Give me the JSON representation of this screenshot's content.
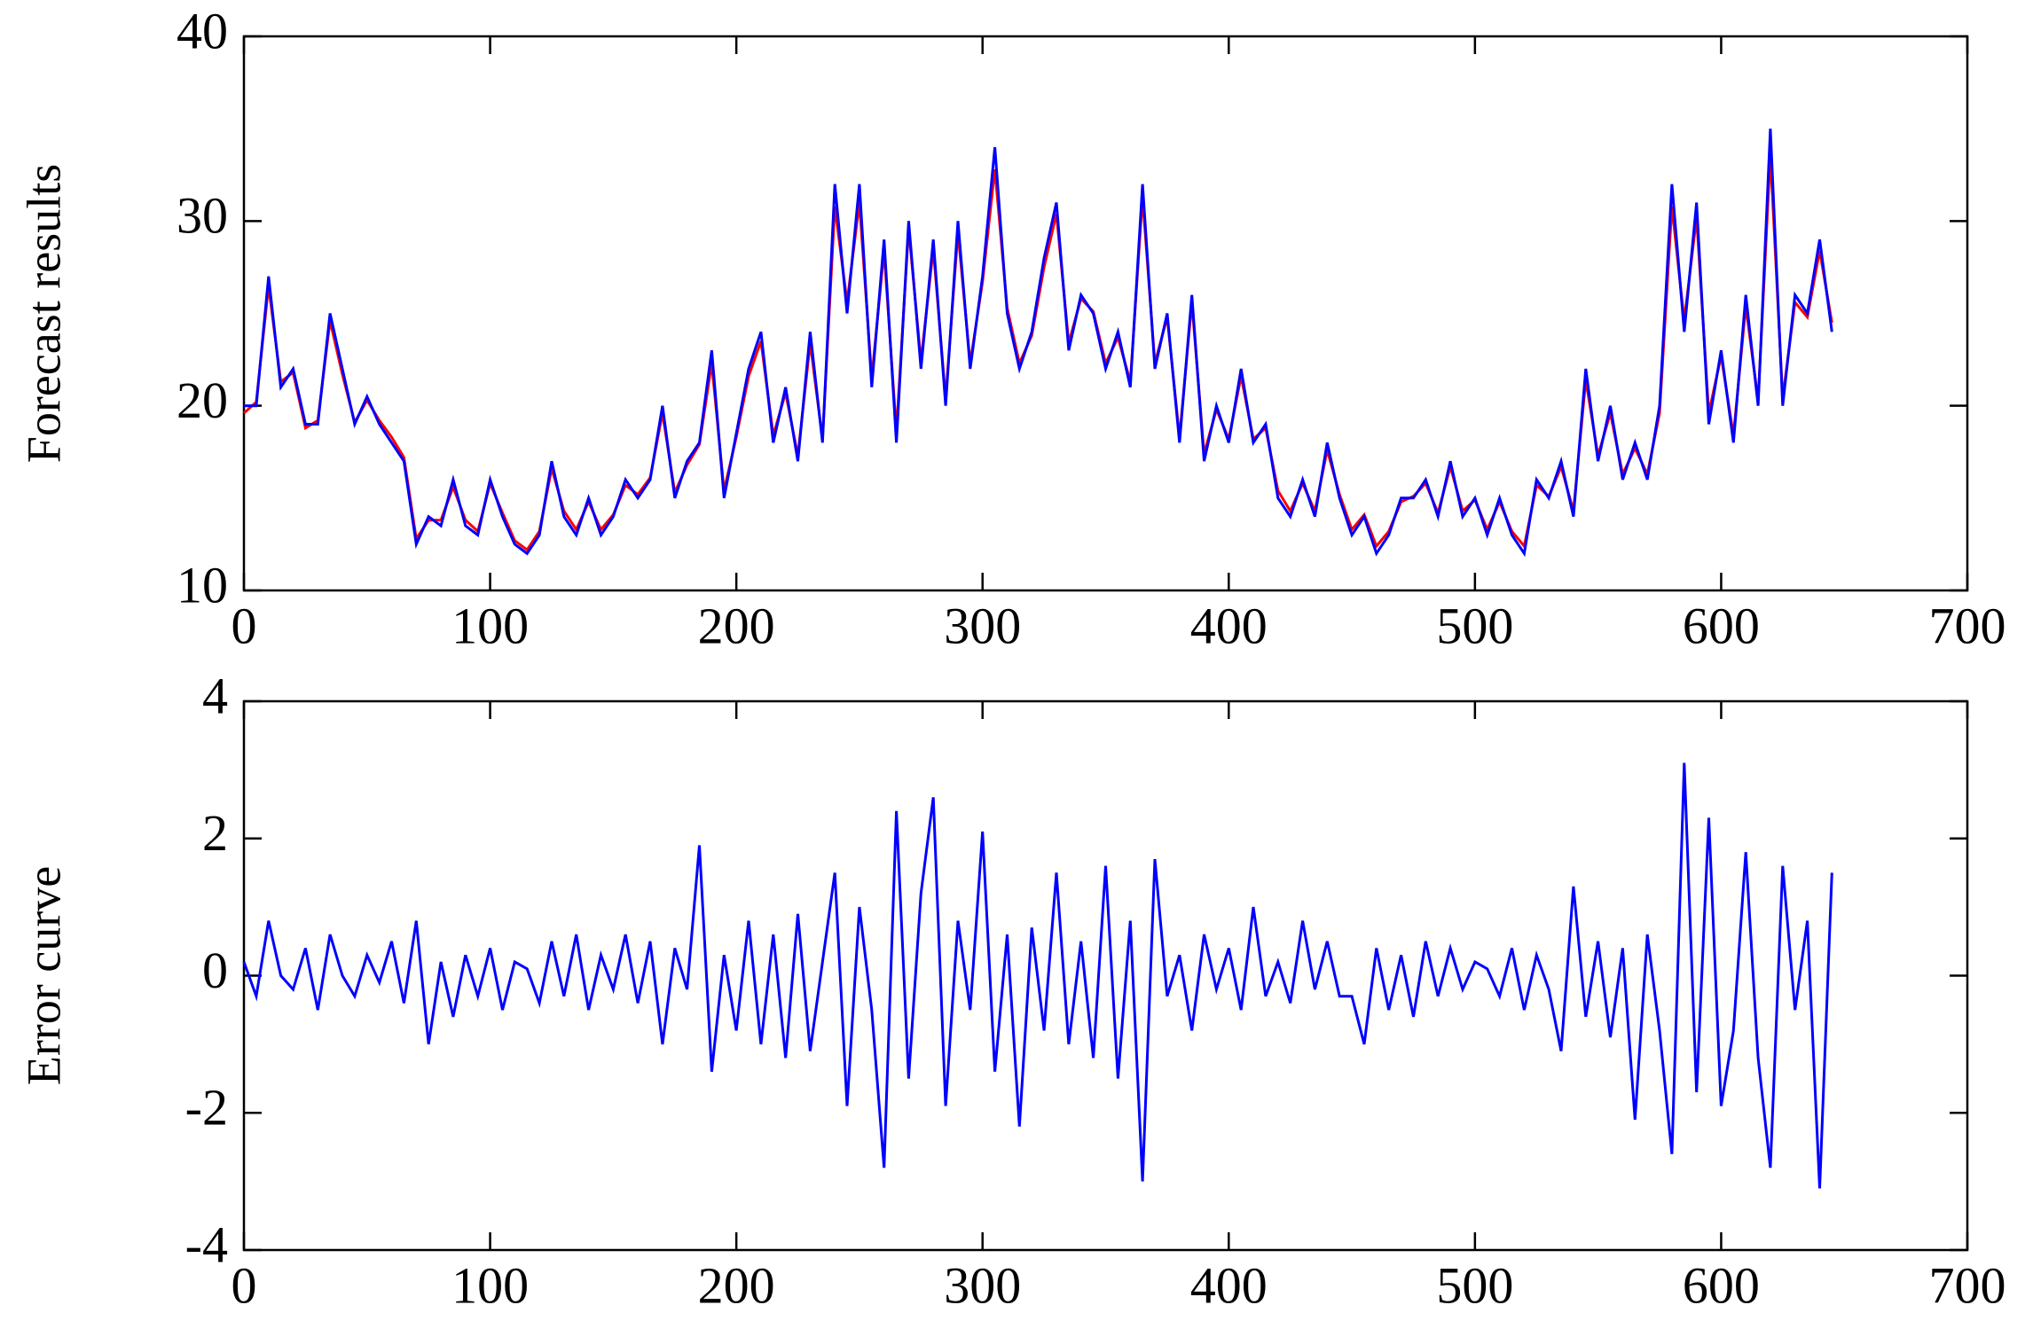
{
  "chart_data": [
    {
      "type": "line",
      "ylabel": "Forecast results",
      "x": [
        0,
        5,
        10,
        15,
        20,
        25,
        30,
        35,
        40,
        45,
        50,
        55,
        60,
        65,
        70,
        75,
        80,
        85,
        90,
        95,
        100,
        105,
        110,
        115,
        120,
        125,
        130,
        135,
        140,
        145,
        150,
        155,
        160,
        165,
        170,
        175,
        180,
        185,
        190,
        195,
        200,
        205,
        210,
        215,
        220,
        225,
        230,
        235,
        240,
        245,
        250,
        255,
        260,
        265,
        270,
        275,
        280,
        285,
        290,
        295,
        300,
        305,
        310,
        315,
        320,
        325,
        330,
        335,
        340,
        345,
        350,
        355,
        360,
        365,
        370,
        375,
        380,
        385,
        390,
        395,
        400,
        405,
        410,
        415,
        420,
        425,
        430,
        435,
        440,
        445,
        450,
        455,
        460,
        465,
        470,
        475,
        480,
        485,
        490,
        495,
        500,
        505,
        510,
        515,
        520,
        525,
        530,
        535,
        540,
        545,
        550,
        555,
        560,
        565,
        570,
        575,
        580,
        585,
        590,
        595,
        600,
        605,
        610,
        615,
        620,
        625,
        630,
        635,
        640,
        645
      ],
      "series": [
        {
          "color": "#ff0000",
          "values": [
            19.6,
            20.2,
            26.5,
            21.3,
            21.8,
            18.8,
            19.2,
            24.6,
            21.7,
            19.1,
            20.3,
            19.2,
            18.3,
            17.2,
            12.8,
            13.8,
            13.8,
            15.6,
            13.8,
            13.2,
            15.8,
            14.2,
            12.7,
            12.2,
            13.2,
            16.6,
            14.3,
            13.3,
            14.8,
            13.3,
            14.1,
            15.7,
            15.2,
            16.1,
            19.6,
            15.3,
            16.8,
            17.9,
            22.3,
            15.4,
            18.3,
            21.6,
            23.5,
            18.4,
            20.7,
            17.3,
            23.4,
            18.2,
            30.8,
            25.6,
            31.0,
            21.5,
            28.4,
            18.6,
            29.6,
            22.4,
            28.5,
            20.4,
            29.4,
            22.3,
            26.7,
            32.8,
            25.3,
            22.3,
            23.8,
            27.5,
            30.4,
            23.4,
            25.8,
            25.1,
            22.3,
            23.7,
            21.3,
            31.3,
            22.3,
            24.8,
            18.3,
            25.6,
            17.4,
            19.8,
            18.2,
            21.6,
            18.2,
            18.8,
            15.4,
            14.3,
            15.8,
            14.3,
            17.6,
            15.2,
            13.3,
            14.1,
            12.4,
            13.2,
            14.8,
            15.1,
            15.8,
            14.2,
            16.7,
            14.3,
            14.9,
            13.3,
            14.8,
            13.2,
            12.4,
            15.7,
            15.1,
            16.7,
            14.3,
            21.4,
            17.3,
            19.6,
            16.3,
            17.7,
            16.3,
            19.6,
            30.8,
            24.6,
            30.2,
            19.6,
            22.7,
            18.4,
            25.4,
            20.3,
            33.6,
            20.4,
            25.6,
            24.8,
            28.4,
            24.5
          ]
        },
        {
          "color": "#0000ff",
          "values": [
            20,
            20,
            27,
            21,
            22,
            19,
            19,
            25,
            22,
            19,
            20.5,
            19,
            18,
            17,
            12.5,
            14,
            13.5,
            16,
            13.5,
            13,
            16,
            14,
            12.5,
            12,
            13,
            17,
            14,
            13,
            15,
            13,
            14,
            16,
            15,
            16,
            20,
            15,
            17,
            18,
            23,
            15,
            18.5,
            22,
            24,
            18,
            21,
            17,
            24,
            18,
            32,
            25,
            32,
            21,
            29,
            18,
            30,
            22,
            29,
            20,
            30,
            22,
            27,
            34,
            25,
            22,
            24,
            28,
            31,
            23,
            26,
            25,
            22,
            24,
            21,
            32,
            22,
            25,
            18,
            26,
            17,
            20,
            18,
            22,
            18,
            19,
            15,
            14,
            16,
            14,
            18,
            15,
            13,
            14,
            12,
            13,
            15,
            15,
            16,
            14,
            17,
            14,
            15,
            13,
            15,
            13,
            12,
            16,
            15,
            17,
            14,
            22,
            17,
            20,
            16,
            18,
            16,
            20,
            32,
            24,
            31,
            19,
            23,
            18,
            26,
            20,
            35,
            20,
            26,
            25,
            29,
            24
          ]
        }
      ],
      "xlim": [
        0,
        700
      ],
      "xticks": [
        0,
        100,
        200,
        300,
        400,
        500,
        600,
        700
      ],
      "ylim": [
        10,
        40
      ],
      "yticks": [
        10,
        20,
        30,
        40
      ]
    },
    {
      "type": "line",
      "ylabel": "Error curve",
      "x": [
        0,
        5,
        10,
        15,
        20,
        25,
        30,
        35,
        40,
        45,
        50,
        55,
        60,
        65,
        70,
        75,
        80,
        85,
        90,
        95,
        100,
        105,
        110,
        115,
        120,
        125,
        130,
        135,
        140,
        145,
        150,
        155,
        160,
        165,
        170,
        175,
        180,
        185,
        190,
        195,
        200,
        205,
        210,
        215,
        220,
        225,
        230,
        235,
        240,
        245,
        250,
        255,
        260,
        265,
        270,
        275,
        280,
        285,
        290,
        295,
        300,
        305,
        310,
        315,
        320,
        325,
        330,
        335,
        340,
        345,
        350,
        355,
        360,
        365,
        370,
        375,
        380,
        385,
        390,
        395,
        400,
        405,
        410,
        415,
        420,
        425,
        430,
        435,
        440,
        445,
        450,
        455,
        460,
        465,
        470,
        475,
        480,
        485,
        490,
        495,
        500,
        505,
        510,
        515,
        520,
        525,
        530,
        535,
        540,
        545,
        550,
        555,
        560,
        565,
        570,
        575,
        580,
        585,
        590,
        595,
        600,
        605,
        610,
        615,
        620,
        625,
        630,
        635,
        640,
        645
      ],
      "series": [
        {
          "color": "#0000ff",
          "values": [
            0.2,
            -0.3,
            0.8,
            0,
            -0.2,
            0.4,
            -0.5,
            0.6,
            0,
            -0.3,
            0.3,
            -0.1,
            0.5,
            -0.4,
            0.8,
            -1,
            0.2,
            -0.6,
            0.3,
            -0.3,
            0.4,
            -0.5,
            0.2,
            0.1,
            -0.4,
            0.5,
            -0.3,
            0.6,
            -0.5,
            0.3,
            -0.2,
            0.6,
            -0.4,
            0.5,
            -1,
            0.4,
            -0.2,
            1.9,
            -1.4,
            0.3,
            -0.8,
            0.8,
            -1,
            0.6,
            -1.2,
            0.9,
            -1.1,
            0.2,
            1.5,
            -1.9,
            1,
            -0.5,
            -2.8,
            2.4,
            -1.5,
            1.2,
            2.6,
            -1.9,
            0.8,
            -0.5,
            2.1,
            -1.4,
            0.6,
            -2.2,
            0.7,
            -0.8,
            1.5,
            -1,
            0.5,
            -1.2,
            1.6,
            -1.5,
            0.8,
            -3,
            1.7,
            -0.3,
            0.3,
            -0.8,
            0.6,
            -0.2,
            0.4,
            -0.5,
            1,
            -0.3,
            0.2,
            -0.4,
            0.8,
            -0.2,
            0.5,
            -0.3,
            -0.3,
            -1,
            0.4,
            -0.5,
            0.3,
            -0.6,
            0.5,
            -0.3,
            0.4,
            -0.2,
            0.2,
            0.1,
            -0.3,
            0.4,
            -0.5,
            0.3,
            -0.2,
            -1.1,
            1.3,
            -0.6,
            0.5,
            -0.9,
            0.4,
            -2.1,
            0.6,
            -0.8,
            -2.6,
            3.1,
            -1.7,
            2.3,
            -1.9,
            -0.8,
            1.8,
            -1.2,
            -2.8,
            1.6,
            -0.5,
            0.8,
            -3.1,
            1.5
          ]
        }
      ],
      "xlim": [
        0,
        700
      ],
      "xticks": [
        0,
        100,
        200,
        300,
        400,
        500,
        600,
        700
      ],
      "ylim": [
        -4,
        4
      ],
      "yticks": [
        -4,
        -2,
        0,
        2,
        4
      ]
    }
  ]
}
